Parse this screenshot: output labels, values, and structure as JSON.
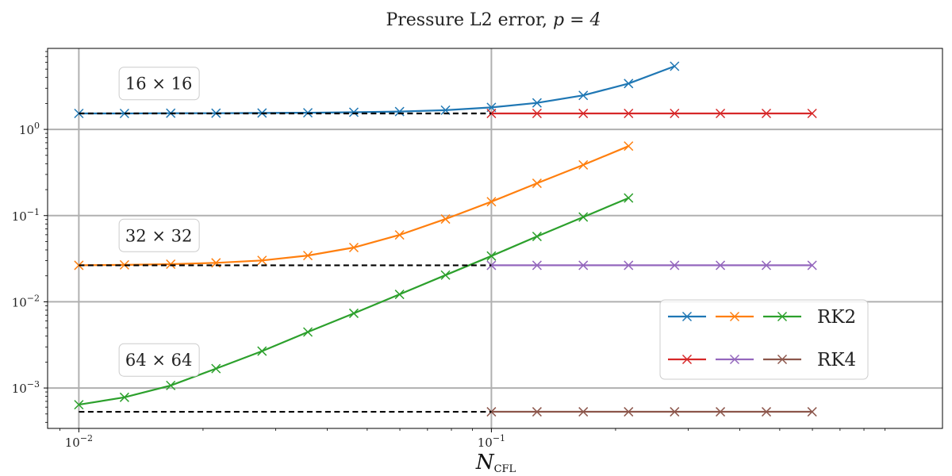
{
  "chart_data": {
    "type": "line",
    "title": "Pressure L2 error, p = 4",
    "title_main": "Pressure L2 error, ",
    "title_math": "p = 4",
    "xlabel": "N",
    "xlabel_sub": "CFL",
    "xscale": "log",
    "yscale": "log",
    "xlim": [
      0.0084,
      1.24
    ],
    "ylim": [
      0.00034,
      8.7
    ],
    "grid": "major",
    "legend_position": "lower-right",
    "x_ticks": [
      {
        "base": "10",
        "exp": "−2",
        "value": 0.01
      },
      {
        "base": "10",
        "exp": "−1",
        "value": 0.1
      }
    ],
    "y_ticks": [
      {
        "base": "10",
        "exp": "−3",
        "value": 0.001
      },
      {
        "base": "10",
        "exp": "−2",
        "value": 0.01
      },
      {
        "base": "10",
        "exp": "−1",
        "value": 0.1
      },
      {
        "base": "10",
        "exp": "0",
        "value": 1
      }
    ],
    "annotations": [
      {
        "text": "16 × 16",
        "x": 0.0128,
        "y": 3.3
      },
      {
        "text": "32 × 32",
        "x": 0.0128,
        "y": 0.057
      },
      {
        "text": "64 × 64",
        "x": 0.0128,
        "y": 0.00205
      }
    ],
    "legend": [
      {
        "label": "RK2",
        "colors": [
          "#1f77b4",
          "#ff7f0e",
          "#2ca02c"
        ]
      },
      {
        "label": "RK4",
        "colors": [
          "#d62728",
          "#9467bd",
          "#8c564b"
        ]
      }
    ],
    "series": [
      {
        "group": "RK2",
        "mesh": "16 × 16",
        "color": "#1f77b4",
        "x": [
          0.01,
          0.0129,
          0.0167,
          0.0215,
          0.0278,
          0.0359,
          0.0464,
          0.0599,
          0.0774,
          0.1,
          0.129,
          0.167,
          0.215,
          0.278
        ],
        "y": [
          1.53,
          1.53,
          1.54,
          1.54,
          1.55,
          1.56,
          1.58,
          1.61,
          1.67,
          1.8,
          2.03,
          2.48,
          3.4,
          5.4
        ]
      },
      {
        "group": "RK2",
        "mesh": "32 × 32",
        "color": "#ff7f0e",
        "x": [
          0.01,
          0.0129,
          0.0167,
          0.0215,
          0.0278,
          0.0359,
          0.0464,
          0.0599,
          0.0774,
          0.1,
          0.129,
          0.167,
          0.215
        ],
        "y": [
          0.0265,
          0.0268,
          0.0273,
          0.0283,
          0.0302,
          0.0344,
          0.0426,
          0.0597,
          0.0913,
          0.145,
          0.237,
          0.387,
          0.64
        ]
      },
      {
        "group": "RK2",
        "mesh": "64 × 64",
        "color": "#2ca02c",
        "x": [
          0.01,
          0.0129,
          0.0167,
          0.0215,
          0.0278,
          0.0359,
          0.0464,
          0.0599,
          0.0774,
          0.1,
          0.129,
          0.167,
          0.215
        ],
        "y": [
          0.00064,
          0.00078,
          0.00107,
          0.00168,
          0.00268,
          0.00446,
          0.00735,
          0.0122,
          0.0204,
          0.034,
          0.0573,
          0.0962,
          0.16
        ]
      },
      {
        "group": "RK4",
        "mesh": "16 × 16",
        "color": "#d62728",
        "x": [
          0.1,
          0.129,
          0.167,
          0.215,
          0.278,
          0.359,
          0.464,
          0.599
        ],
        "y": [
          1.53,
          1.53,
          1.53,
          1.53,
          1.53,
          1.53,
          1.53,
          1.53
        ]
      },
      {
        "group": "RK4",
        "mesh": "32 × 32",
        "color": "#9467bd",
        "x": [
          0.1,
          0.129,
          0.167,
          0.215,
          0.278,
          0.359,
          0.464,
          0.599
        ],
        "y": [
          0.0265,
          0.0265,
          0.0265,
          0.0265,
          0.0265,
          0.0265,
          0.0265,
          0.0265
        ]
      },
      {
        "group": "RK4",
        "mesh": "64 × 64",
        "color": "#8c564b",
        "x": [
          0.1,
          0.129,
          0.167,
          0.215,
          0.278,
          0.359,
          0.464,
          0.599
        ],
        "y": [
          0.00053,
          0.00053,
          0.00053,
          0.00053,
          0.00053,
          0.00053,
          0.00053,
          0.00053
        ]
      }
    ],
    "reference_lines": [
      {
        "style": "dashed",
        "color": "#000000",
        "x": [
          0.01,
          0.1
        ],
        "y": [
          1.53,
          1.53
        ]
      },
      {
        "style": "dashed",
        "color": "#000000",
        "x": [
          0.01,
          0.1
        ],
        "y": [
          0.0265,
          0.0265
        ]
      },
      {
        "style": "dashed",
        "color": "#000000",
        "x": [
          0.01,
          0.1
        ],
        "y": [
          0.00053,
          0.00053
        ]
      }
    ]
  }
}
